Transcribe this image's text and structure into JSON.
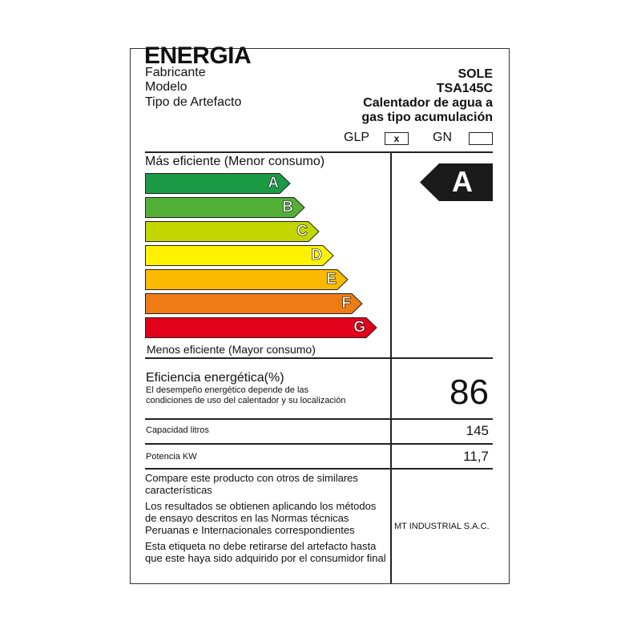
{
  "header": {
    "title": "ENERGIA",
    "fabricante_label": "Fabricante",
    "fabricante": "SOLE",
    "modelo_label": "Modelo",
    "modelo": "TSA145C",
    "tipo_label": "Tipo de Artefacto",
    "tipo_line1": "Calentador de agua a",
    "tipo_line2": "gas tipo acumulación"
  },
  "fuel": {
    "glp_label": "GLP",
    "glp_mark": "x",
    "gn_label": "GN",
    "gn_mark": ""
  },
  "scale": {
    "top_label": "Más eficiente (Menor consumo)",
    "bottom_label": "Menos eficiente (Mayor consumo)",
    "classes": [
      {
        "letter": "A",
        "color": "#1a9a45"
      },
      {
        "letter": "B",
        "color": "#52b036"
      },
      {
        "letter": "C",
        "color": "#c3d600"
      },
      {
        "letter": "D",
        "color": "#fff200"
      },
      {
        "letter": "E",
        "color": "#fbb900"
      },
      {
        "letter": "F",
        "color": "#ee7b14"
      },
      {
        "letter": "G",
        "color": "#e3001b"
      }
    ],
    "rating": "A"
  },
  "efficiency": {
    "label": "Eficiencia energética(%)",
    "note1": "El desempeño energético depende de las",
    "note2": "condiciones de uso del calentador y su localización",
    "value": "86"
  },
  "capacity": {
    "label": "Capacidad litros",
    "value": "145"
  },
  "power": {
    "label": "Potencia KW",
    "value": "11,7"
  },
  "footer": {
    "p1": "Compare este producto con otros de similares características",
    "p2": "Los resultados se obtienen aplicando los métodos de ensayo descritos en las Normas técnicas Peruanas e Internacionales correspondientes",
    "p3": "Esta etiqueta no debe retirarse del artefacto hasta que este haya sido adquirido por el consumidor final",
    "company": "MT INDUSTRIAL S.A.C."
  }
}
